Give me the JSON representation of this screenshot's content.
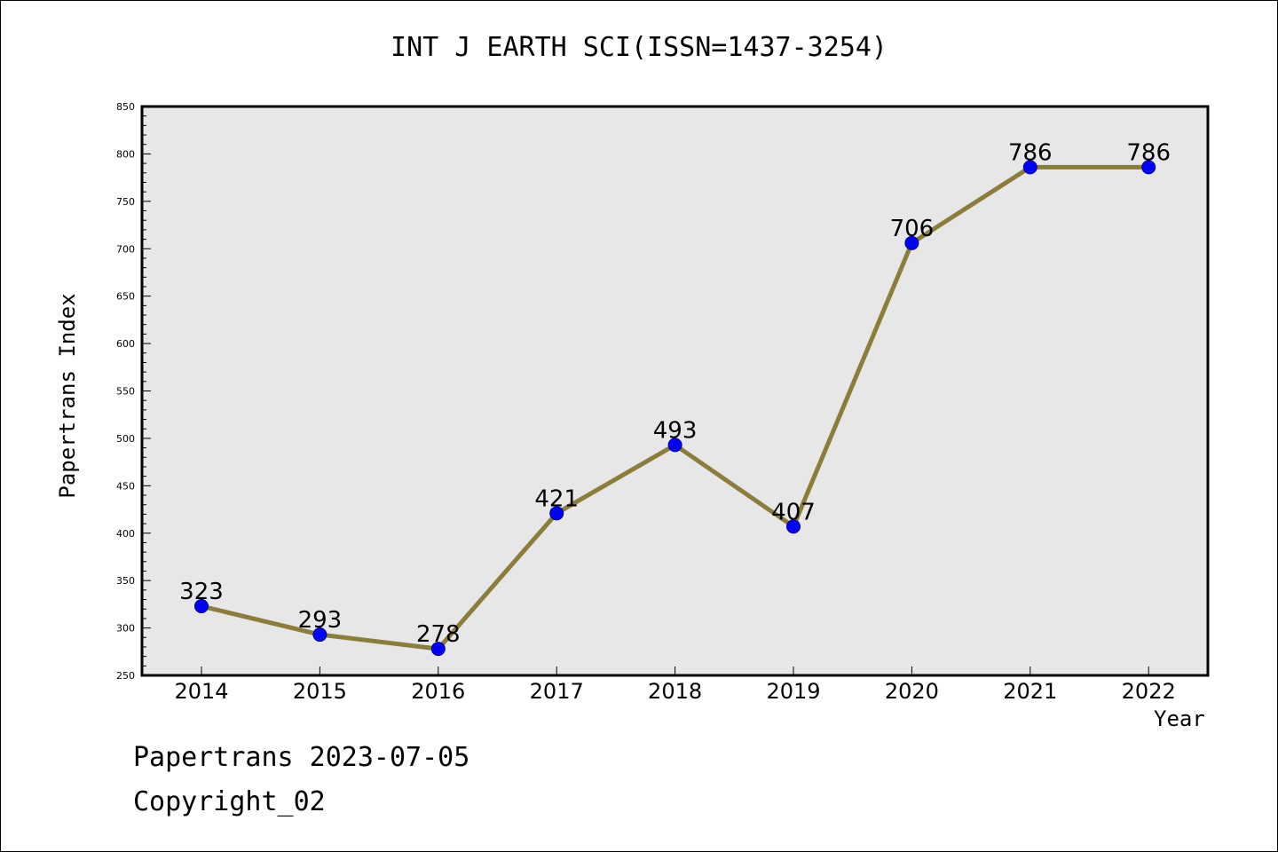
{
  "chart_data": {
    "type": "line",
    "title": "INT J EARTH SCI(ISSN=1437-3254)",
    "xlabel": "Year",
    "ylabel": "Papertrans Index",
    "categories": [
      "2014",
      "2015",
      "2016",
      "2017",
      "2018",
      "2019",
      "2020",
      "2021",
      "2022"
    ],
    "series": [
      {
        "values": [
          323,
          293,
          278,
          421,
          493,
          407,
          706,
          786,
          786
        ]
      }
    ],
    "data_labels": [
      "323",
      "293",
      "278",
      "421",
      "493",
      "407",
      "706",
      "786",
      "786"
    ],
    "ylim": [
      250,
      850
    ],
    "yticks": [
      250,
      300,
      350,
      400,
      450,
      500,
      550,
      600,
      650,
      700,
      750,
      800,
      850
    ],
    "ytick_labels": [
      "250",
      "300",
      "350",
      "400",
      "450",
      "500",
      "550",
      "600",
      "650",
      "700",
      "750",
      "800",
      "850"
    ],
    "grid": false,
    "colors": {
      "line": "#8B7D3A",
      "marker": "#0000FF",
      "plot_background": "#E7E7E7"
    }
  },
  "footer": {
    "line1": "Papertrans 2023-07-05",
    "line2": "Copyright_02"
  }
}
